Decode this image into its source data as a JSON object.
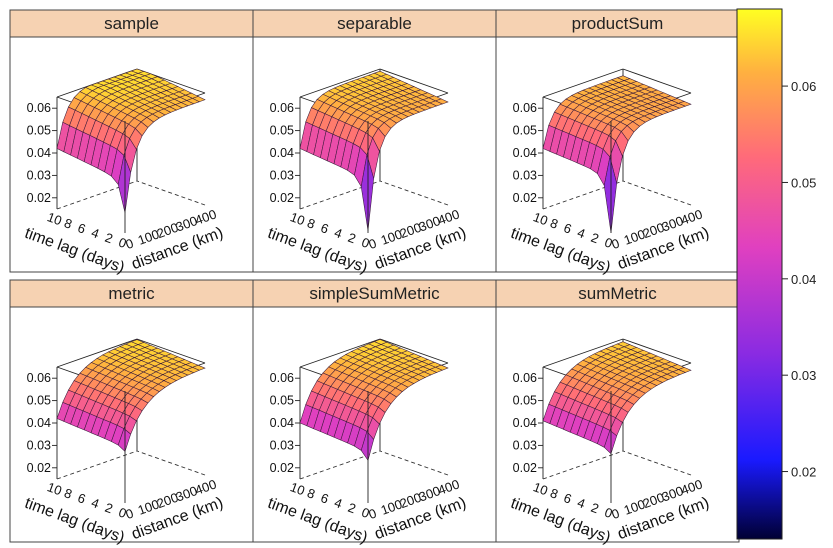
{
  "chart_data": {
    "type": "surface3d",
    "title": "",
    "x_axis": {
      "label": "distance (km)",
      "ticks": [
        0,
        100,
        200,
        300,
        400
      ],
      "tick_labels": [
        "0",
        "100",
        "200",
        "300",
        "400"
      ]
    },
    "y_axis": {
      "label": "time lag (days)",
      "ticks": [
        0,
        2,
        4,
        6,
        8,
        10
      ],
      "tick_labels": [
        "0",
        "2",
        "4",
        "6",
        "8",
        "10"
      ]
    },
    "z_axis": {
      "label": "",
      "ticks": [
        0.02,
        0.03,
        0.04,
        0.05,
        0.06
      ],
      "tick_labels": [
        "0.02",
        "0.03",
        "0.04",
        "0.05",
        "0.06"
      ],
      "range": [
        0.015,
        0.065
      ]
    },
    "colorbar": {
      "range": [
        0.013,
        0.068
      ],
      "ticks": [
        0.02,
        0.03,
        0.04,
        0.05,
        0.06
      ],
      "tick_labels": [
        "0.02",
        "0.03",
        "0.04",
        "0.05",
        "0.06"
      ]
    },
    "grid": {
      "distance": [
        0,
        30,
        60,
        90,
        120,
        150,
        180,
        210,
        240,
        270,
        300,
        330,
        360,
        390,
        420
      ],
      "time_lag": [
        0,
        1,
        2,
        3,
        4,
        5,
        6,
        7,
        8,
        9,
        10
      ]
    },
    "panels": [
      {
        "name": "sample",
        "near_lag0": 0.024,
        "sill": 0.062,
        "nugget": 0.038,
        "shoulder_distance": 150,
        "lag_rise": 0.004
      },
      {
        "name": "separable",
        "near_lag0": 0.016,
        "sill": 0.061,
        "nugget": 0.039,
        "shoulder_distance": 130,
        "lag_rise": 0.003
      },
      {
        "name": "productSum",
        "near_lag0": 0.015,
        "sill": 0.06,
        "nugget": 0.04,
        "shoulder_distance": 140,
        "lag_rise": 0.002
      },
      {
        "name": "metric",
        "near_lag0": 0.038,
        "sill": 0.063,
        "nugget": 0.04,
        "shoulder_distance": 280,
        "lag_rise": 0.002
      },
      {
        "name": "simpleSumMetric",
        "near_lag0": 0.034,
        "sill": 0.063,
        "nugget": 0.038,
        "shoulder_distance": 260,
        "lag_rise": 0.002
      },
      {
        "name": "sumMetric",
        "near_lag0": 0.037,
        "sill": 0.062,
        "nugget": 0.039,
        "shoulder_distance": 270,
        "lag_rise": 0.002
      }
    ]
  }
}
